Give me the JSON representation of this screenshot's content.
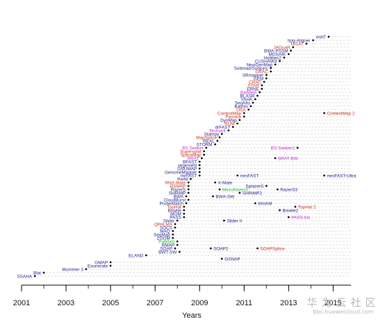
{
  "chart_data": {
    "type": "scatter",
    "xlabel": "Years",
    "x_ticks": [
      "2001",
      "2003",
      "2005",
      "2007",
      "2009",
      "2011",
      "2013",
      "2015"
    ],
    "xlim": [
      2001,
      2015.8
    ],
    "colors": {
      "black": "#000000",
      "blue": "#1f1f8f",
      "red": "#c8341e",
      "magenta": "#c62ec8",
      "green": "#2cb52c"
    },
    "series": [
      {
        "row": 0,
        "label": "SSAHA",
        "x": 2001.6,
        "color": "blue"
      },
      {
        "row": 1,
        "label": "Blat",
        "x": 2002.0,
        "color": "blue"
      },
      {
        "row": 2,
        "label": "Mummer 3",
        "x": 2003.9,
        "color": "blue"
      },
      {
        "row": 3,
        "label": "Exonerate",
        "x": 2005.0,
        "color": "blue"
      },
      {
        "row": 4,
        "label": "GMAP",
        "x": 2005.0,
        "color": "blue"
      },
      {
        "row": 5,
        "label": "GSNAP",
        "x": 2010.0,
        "color": "blue",
        "label_side": "right"
      },
      {
        "row": 6,
        "label": "ELAND",
        "x": 2006.6,
        "color": "blue"
      },
      {
        "row": 7,
        "label": "BWT-SW",
        "x": 2008.1,
        "color": "blue"
      },
      {
        "row": 8,
        "label": "SOAP",
        "x": 2007.9,
        "color": "blue"
      },
      {
        "row": 8,
        "label": "SOAP2",
        "x": 2009.5,
        "color": "blue",
        "label_side": "right"
      },
      {
        "row": 8,
        "label": "SOAPSplice",
        "x": 2011.6,
        "color": "red",
        "label_side": "right"
      },
      {
        "row": 9,
        "label": "RMAP",
        "x": 2008.0,
        "color": "blue"
      },
      {
        "row": 10,
        "label": "PatMaN",
        "x": 2008.0,
        "color": "green"
      },
      {
        "row": 11,
        "label": "ZOOM",
        "x": 2007.8,
        "color": "blue"
      },
      {
        "row": 12,
        "label": "SeqMap",
        "x": 2007.8,
        "color": "blue"
      },
      {
        "row": 13,
        "label": "MAQ",
        "x": 2007.8,
        "color": "blue"
      },
      {
        "row": 14,
        "label": "SOCS",
        "x": 2007.9,
        "color": "blue"
      },
      {
        "row": 15,
        "label": "QPALMA",
        "x": 2007.9,
        "color": "red"
      },
      {
        "row": 16,
        "label": "Slider",
        "x": 2008.0,
        "color": "blue"
      },
      {
        "row": 16,
        "label": "Slider II",
        "x": 2010.1,
        "color": "blue",
        "label_side": "right"
      },
      {
        "row": 17,
        "label": "PASS",
        "x": 2008.3,
        "color": "blue"
      },
      {
        "row": 17,
        "label": "PASS-bis",
        "x": 2013.0,
        "color": "magenta",
        "label_side": "right"
      },
      {
        "row": 18,
        "label": "MOM",
        "x": 2008.3,
        "color": "blue"
      },
      {
        "row": 19,
        "label": "Bowtie",
        "x": 2008.3,
        "color": "blue"
      },
      {
        "row": 19,
        "label": "Bowtie2",
        "x": 2012.6,
        "color": "blue",
        "label_side": "right"
      },
      {
        "row": 20,
        "label": "TopHat",
        "x": 2008.3,
        "color": "red"
      },
      {
        "row": 20,
        "label": "TopHat 2",
        "x": 2013.3,
        "color": "red",
        "label_side": "right"
      },
      {
        "row": 21,
        "label": "ProbeMatch",
        "x": 2008.4,
        "color": "blue"
      },
      {
        "row": 21,
        "label": "WHAM",
        "x": 2011.5,
        "color": "blue",
        "label_side": "right"
      },
      {
        "row": 22,
        "label": "CloudBurst",
        "x": 2008.5,
        "color": "blue"
      },
      {
        "row": 23,
        "label": "BWA",
        "x": 2008.4,
        "color": "blue"
      },
      {
        "row": 23,
        "label": "BWA-SW",
        "x": 2009.6,
        "color": "blue",
        "label_side": "right"
      },
      {
        "row": 24,
        "label": "SHRiMP",
        "x": 2008.5,
        "color": "blue"
      },
      {
        "row": 24,
        "label": "SHRiMP2",
        "x": 2010.8,
        "color": "blue",
        "label_side": "right"
      },
      {
        "row": 25,
        "label": "RazerS",
        "x": 2008.5,
        "color": "blue"
      },
      {
        "row": 25,
        "label": "MicroRazerS",
        "x": 2009.9,
        "color": "green",
        "label_side": "right"
      },
      {
        "row": 25,
        "label": "RazerS3",
        "x": 2012.5,
        "color": "blue",
        "label_side": "right"
      },
      {
        "row": 26,
        "label": "BSMAP",
        "x": 2008.5,
        "color": "red"
      },
      {
        "row": 26,
        "label": "SplazerS",
        "x": 2012.0,
        "color": "blue"
      },
      {
        "row": 27,
        "label": "RNA-Mate",
        "x": 2008.5,
        "color": "red"
      },
      {
        "row": 27,
        "label": "X-Mate",
        "x": 2009.7,
        "color": "blue",
        "label_side": "right"
      },
      {
        "row": 28,
        "label": "PerM",
        "x": 2008.6,
        "color": "blue"
      },
      {
        "row": 29,
        "label": "mrFAST",
        "x": 2009.0,
        "color": "blue"
      },
      {
        "row": 29,
        "label": "mrsFAST",
        "x": 2010.7,
        "color": "blue",
        "label_side": "right"
      },
      {
        "row": 29,
        "label": "mrsFAST-Ultra",
        "x": 2014.6,
        "color": "blue",
        "label_side": "right"
      },
      {
        "row": 30,
        "label": "GenomeMapper",
        "x": 2009.0,
        "color": "blue"
      },
      {
        "row": 31,
        "label": "GNUMAP",
        "x": 2009.0,
        "color": "blue"
      },
      {
        "row": 32,
        "label": "segemehl",
        "x": 2009.0,
        "color": "blue"
      },
      {
        "row": 33,
        "label": "BFAST",
        "x": 2009.0,
        "color": "blue"
      },
      {
        "row": 34,
        "label": "RRAT",
        "x": 2009.1,
        "color": "magenta"
      },
      {
        "row": 34,
        "label": "BRAT-BW",
        "x": 2012.4,
        "color": "magenta",
        "label_side": "right"
      },
      {
        "row": 35,
        "label": "SpliceMap",
        "x": 2009.2,
        "color": "red"
      },
      {
        "row": 36,
        "label": "Supersplat",
        "x": 2009.2,
        "color": "red"
      },
      {
        "row": 37,
        "label": "BS Seeker",
        "x": 2009.3,
        "color": "magenta"
      },
      {
        "row": 37,
        "label": "BS-Seeker2",
        "x": 2013.4,
        "color": "magenta",
        "label_side": "left"
      },
      {
        "row": 38,
        "label": "STORM",
        "x": 2009.7,
        "color": "blue"
      },
      {
        "row": 39,
        "label": "REAL",
        "x": 2009.8,
        "color": "blue"
      },
      {
        "row": 40,
        "label": "MapSplice",
        "x": 2009.9,
        "color": "red"
      },
      {
        "row": 41,
        "label": "Stampy",
        "x": 2010.0,
        "color": "blue"
      },
      {
        "row": 42,
        "label": "Bismark",
        "x": 2010.3,
        "color": "magenta"
      },
      {
        "row": 43,
        "label": "drFAST",
        "x": 2010.5,
        "color": "blue"
      },
      {
        "row": 44,
        "label": "RUM",
        "x": 2010.7,
        "color": "red"
      },
      {
        "row": 45,
        "label": "DynMap",
        "x": 2010.8,
        "color": "blue"
      },
      {
        "row": 46,
        "label": "Passion",
        "x": 2011.0,
        "color": "red"
      },
      {
        "row": 47,
        "label": "ContextMap",
        "x": 2011.0,
        "color": "red"
      },
      {
        "row": 47,
        "label": "ContextMap 2",
        "x": 2014.6,
        "color": "red",
        "label_side": "right"
      },
      {
        "row": 48,
        "label": "OSA",
        "x": 2011.2,
        "color": "red"
      },
      {
        "row": 49,
        "label": "Batmis",
        "x": 2011.3,
        "color": "blue"
      },
      {
        "row": 50,
        "label": "SeqAlto",
        "x": 2011.4,
        "color": "blue"
      },
      {
        "row": 51,
        "label": "YAHA",
        "x": 2011.5,
        "color": "blue"
      },
      {
        "row": 52,
        "label": "BLASR",
        "x": 2011.6,
        "color": "blue"
      },
      {
        "row": 53,
        "label": "BatMeth",
        "x": 2011.7,
        "color": "magenta"
      },
      {
        "row": 54,
        "label": "ERNE",
        "x": 2011.8,
        "color": "blue"
      },
      {
        "row": 55,
        "label": "STAR",
        "x": 2011.8,
        "color": "red"
      },
      {
        "row": 56,
        "label": "CRAC",
        "x": 2011.9,
        "color": "red"
      },
      {
        "row": 57,
        "label": "GEM",
        "x": 2012.0,
        "color": "blue"
      },
      {
        "row": 58,
        "label": "SRmapper",
        "x": 2012.0,
        "color": "blue"
      },
      {
        "row": 59,
        "label": "GRAC",
        "x": 2012.2,
        "color": "red"
      },
      {
        "row": 60,
        "label": "Subread/Subjunc",
        "x": 2012.2,
        "color": "blue"
      },
      {
        "row": 61,
        "label": "NextGenMap",
        "x": 2012.4,
        "color": "blue"
      },
      {
        "row": 62,
        "label": "CUSHAW3",
        "x": 2012.6,
        "color": "blue"
      },
      {
        "row": 63,
        "label": "Hobbes2",
        "x": 2012.8,
        "color": "blue"
      },
      {
        "row": 64,
        "label": "MOSAIK",
        "x": 2013.0,
        "color": "blue"
      },
      {
        "row": 65,
        "label": "BWA-PSSM",
        "x": 2013.1,
        "color": "blue"
      },
      {
        "row": 66,
        "label": "JAGuaR",
        "x": 2013.2,
        "color": "red"
      },
      {
        "row": 67,
        "label": "HISAT",
        "x": 2013.8,
        "color": "red"
      },
      {
        "row": 68,
        "label": "hpg-Aligner",
        "x": 2014.1,
        "color": "blue"
      },
      {
        "row": 69,
        "label": "rHAT",
        "x": 2014.8,
        "color": "blue"
      }
    ]
  },
  "watermark": {
    "main": "华为云社区",
    "sub": "bbs.huaweicloud.com"
  }
}
